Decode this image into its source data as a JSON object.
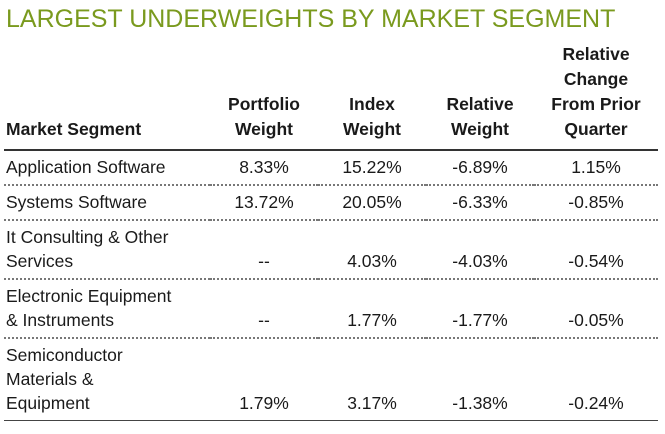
{
  "title": "LARGEST UNDERWEIGHTS BY MARKET SEGMENT",
  "columns": [
    [
      "Market Segment"
    ],
    [
      "Portfolio",
      "Weight"
    ],
    [
      "Index",
      "Weight"
    ],
    [
      "Relative",
      "Weight"
    ],
    [
      "Relative",
      "Change",
      "From Prior",
      "Quarter"
    ]
  ],
  "rows": [
    {
      "segment": [
        "Application Software"
      ],
      "portfolio": "8.33%",
      "index": "15.22%",
      "relative": "-6.89%",
      "change": "1.15%"
    },
    {
      "segment": [
        "Systems Software"
      ],
      "portfolio": "13.72%",
      "index": "20.05%",
      "relative": "-6.33%",
      "change": "-0.85%"
    },
    {
      "segment": [
        "It Consulting & Other",
        "Services"
      ],
      "portfolio": "--",
      "index": "4.03%",
      "relative": "-4.03%",
      "change": "-0.54%"
    },
    {
      "segment": [
        "Electronic Equipment",
        "& Instruments"
      ],
      "portfolio": "--",
      "index": "1.77%",
      "relative": "-1.77%",
      "change": "-0.05%"
    },
    {
      "segment": [
        "Semiconductor",
        "Materials &",
        "Equipment"
      ],
      "portfolio": "1.79%",
      "index": "3.17%",
      "relative": "-1.38%",
      "change": "-0.24%"
    }
  ]
}
